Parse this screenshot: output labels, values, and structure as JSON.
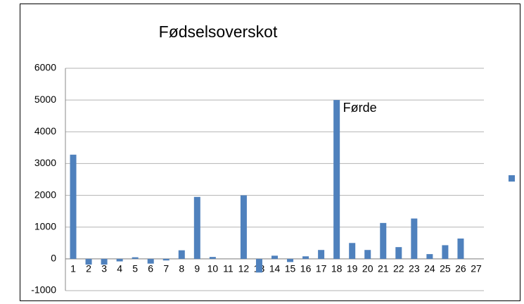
{
  "chart_data": {
    "type": "bar",
    "title": "Fødselsoverskot",
    "annotation": "Førde",
    "categories": [
      "1",
      "2",
      "3",
      "4",
      "5",
      "6",
      "7",
      "8",
      "9",
      "10",
      "11",
      "12",
      "13",
      "14",
      "15",
      "16",
      "17",
      "18",
      "19",
      "20",
      "21",
      "22",
      "23",
      "24",
      "25",
      "26",
      "27"
    ],
    "values": [
      3280,
      -180,
      -180,
      -80,
      50,
      -150,
      -50,
      270,
      1950,
      60,
      0,
      2000,
      -430,
      100,
      -100,
      80,
      280,
      5000,
      500,
      280,
      1130,
      370,
      1270,
      150,
      430,
      640,
      0
    ],
    "color": "#4f81bd",
    "ylim": [
      -1000,
      6000
    ],
    "yticks": [
      -1000,
      0,
      1000,
      2000,
      3000,
      4000,
      5000,
      6000
    ],
    "grid": true
  }
}
